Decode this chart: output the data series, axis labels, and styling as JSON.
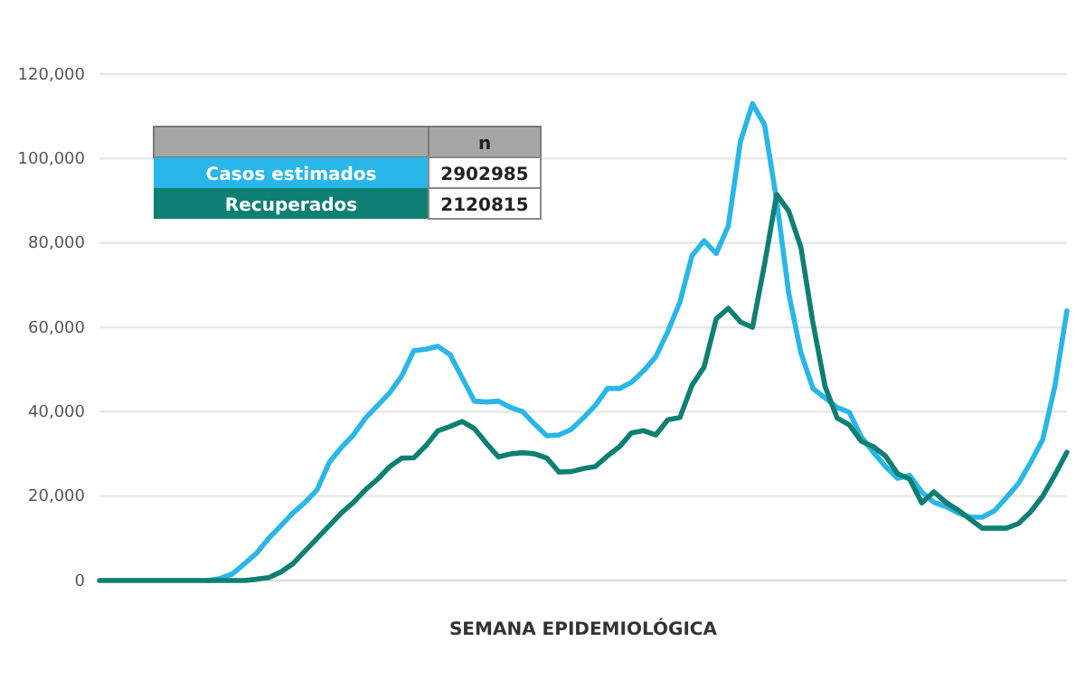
{
  "chart_data": {
    "type": "line",
    "xlabel": "SEMANA EPIDEMIOLÓGICA",
    "categories": [
      null,
      null,
      null,
      null,
      null,
      null,
      null,
      null,
      null,
      null,
      null,
      null,
      null,
      null,
      null,
      null,
      null,
      null,
      null,
      null,
      null,
      null,
      null,
      null,
      null,
      null,
      null,
      null,
      null,
      null,
      null,
      null,
      null,
      null,
      null,
      null,
      null,
      null,
      null,
      null,
      null,
      null,
      null,
      null,
      null,
      null,
      null,
      null,
      null,
      null,
      null,
      null,
      null,
      null,
      null,
      null,
      null,
      null,
      null,
      null,
      null,
      null,
      null,
      null,
      null,
      null,
      null,
      null,
      null,
      null,
      null,
      null,
      null,
      null,
      null,
      null,
      null,
      null,
      null,
      null,
      null
    ],
    "series": [
      {
        "name": "Casos estimados",
        "color": "#29b6e8",
        "values": [
          null,
          null,
          null,
          null,
          null,
          null,
          null,
          null,
          null,
          0,
          500,
          1600,
          4000,
          6500,
          10000,
          13000,
          16000,
          18500,
          21500,
          28000,
          31500,
          34500,
          38500,
          41500,
          44500,
          48500,
          54500,
          54800,
          55500,
          53500,
          48000,
          42500,
          42300,
          42500,
          41000,
          40000,
          37000,
          34300,
          34500,
          35800,
          38500,
          41500,
          45500,
          45500,
          47000,
          49700,
          53000,
          59000,
          66000,
          77000,
          80500,
          77500,
          84000,
          104000,
          113000,
          108000,
          90000,
          68000,
          54000,
          45500,
          43300,
          41000,
          39900,
          34000,
          30400,
          27000,
          24200,
          24900,
          21000,
          18500,
          17500,
          16000,
          15000,
          15000,
          16500,
          19700,
          23000,
          28000,
          33400,
          46000,
          63900
        ]
      },
      {
        "name": "Recuperados",
        "color": "#0e7f73",
        "values": [
          0,
          0,
          0,
          0,
          0,
          0,
          0,
          0,
          0,
          0,
          0,
          0,
          0,
          300,
          700,
          2000,
          4000,
          7000,
          10000,
          13000,
          16000,
          18500,
          21500,
          24000,
          27000,
          29000,
          29100,
          32000,
          35500,
          36500,
          37700,
          36000,
          32500,
          29300,
          30000,
          30300,
          30000,
          29000,
          25700,
          25800,
          26500,
          27000,
          29500,
          31700,
          35000,
          35500,
          34500,
          38100,
          38600,
          46300,
          50600,
          62000,
          64500,
          61300,
          60000,
          75000,
          91500,
          87500,
          79000,
          61000,
          46000,
          38500,
          36900,
          33000,
          31700,
          29500,
          25300,
          24000,
          18400,
          21000,
          18500,
          16700,
          14500,
          12400,
          12400,
          12400,
          13500,
          16300,
          20000,
          25000,
          30400
        ]
      }
    ],
    "ylim": [
      0,
      120000
    ],
    "yticks": [
      0,
      {
        "value": 20000,
        "label": "20,000"
      },
      {
        "value": 40000,
        "label": "40,000"
      },
      {
        "value": 60000,
        "label": "60,000"
      },
      {
        "value": 80000,
        "label": "80,000"
      },
      {
        "value": 100000,
        "label": "100,000"
      },
      {
        "value": 120000,
        "label": "120,000"
      }
    ],
    "grid": "y",
    "legend": "top left",
    "legend_title": "n",
    "annotations": [
      "2902985",
      "2120815"
    ],
    "tick_labels": "y"
  }
}
